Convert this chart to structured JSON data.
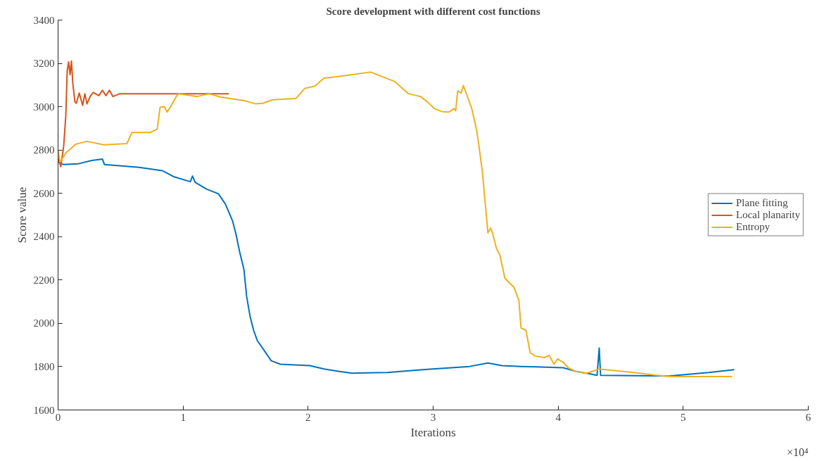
{
  "chart_data": {
    "type": "line",
    "title": "Score development with different cost functions",
    "xlabel": "Iterations",
    "ylabel": "Score value",
    "annotations": [
      "×10⁴"
    ],
    "xlim": [
      0,
      6
    ],
    "xticks": [
      0,
      1,
      2,
      3,
      4,
      5,
      6
    ],
    "ylim": [
      1600,
      3400
    ],
    "yticks": [
      1600,
      1800,
      2000,
      2200,
      2400,
      2600,
      2800,
      3000,
      3200,
      3400
    ],
    "grid": false,
    "legend": "right",
    "line_style": "solid",
    "marker": "none",
    "series": [
      {
        "name": "Plane fitting",
        "color": "#0072bd",
        "x": [
          0,
          0.045,
          0.158,
          0.27,
          0.355,
          0.371,
          0.647,
          0.833,
          0.929,
          1.058,
          1.075,
          1.097,
          1.187,
          1.283,
          1.339,
          1.396,
          1.424,
          1.452,
          1.486,
          1.508,
          1.536,
          1.564,
          1.593,
          1.649,
          1.705,
          1.778,
          2.015,
          2.127,
          2.24,
          2.352,
          2.634,
          2.915,
          3.292,
          3.438,
          3.551,
          3.703,
          4.04,
          4.136,
          4.226,
          4.311,
          4.328,
          4.339,
          4.885,
          5.205,
          5.408
        ],
        "values": [
          2745,
          2733,
          2736,
          2752,
          2758,
          2733,
          2720,
          2705,
          2676,
          2654,
          2680,
          2651,
          2620,
          2598,
          2550,
          2472,
          2409,
          2330,
          2251,
          2125,
          2031,
          1968,
          1921,
          1874,
          1827,
          1811,
          1805,
          1789,
          1779,
          1770,
          1773,
          1786,
          1801,
          1817,
          1805,
          1801,
          1795,
          1779,
          1770,
          1760,
          1886,
          1760,
          1757,
          1773,
          1786
        ]
      },
      {
        "name": "Local planarity",
        "color": "#d95319",
        "x": [
          0,
          0.022,
          0.045,
          0.062,
          0.073,
          0.084,
          0.096,
          0.107,
          0.118,
          0.135,
          0.146,
          0.169,
          0.197,
          0.214,
          0.231,
          0.259,
          0.281,
          0.326,
          0.355,
          0.383,
          0.411,
          0.439,
          0.495,
          0.54,
          1.367
        ],
        "values": [
          2764,
          2723,
          2818,
          2959,
          3164,
          3207,
          3148,
          3211,
          3107,
          3022,
          3016,
          3063,
          3006,
          3060,
          3013,
          3050,
          3066,
          3051,
          3076,
          3051,
          3076,
          3047,
          3060,
          3060,
          3060
        ]
      },
      {
        "name": "Entropy",
        "color": "#edb120",
        "x": [
          0,
          0.017,
          0.062,
          0.141,
          0.231,
          0.366,
          0.551,
          0.591,
          0.737,
          0.793,
          0.816,
          0.85,
          0.872,
          0.906,
          0.945,
          0.962,
          1.114,
          1.21,
          1.3,
          1.491,
          1.581,
          1.638,
          1.716,
          1.902,
          1.975,
          2.054,
          2.127,
          2.24,
          2.499,
          2.69,
          2.802,
          2.898,
          2.954,
          3.011,
          3.067,
          3.123,
          3.168,
          3.18,
          3.196,
          3.224,
          3.241,
          3.269,
          3.309,
          3.348,
          3.365,
          3.393,
          3.416,
          3.438,
          3.461,
          3.478,
          3.506,
          3.534,
          3.573,
          3.607,
          3.647,
          3.686,
          3.703,
          3.742,
          3.776,
          3.815,
          3.889,
          3.928,
          3.967,
          3.995,
          4.04,
          4.08,
          4.136,
          4.226,
          4.294,
          4.322,
          4.603,
          4.789,
          4.902,
          5.391
        ],
        "values": [
          2796,
          2745,
          2786,
          2827,
          2840,
          2824,
          2830,
          2881,
          2881,
          2897,
          2997,
          3000,
          2975,
          3006,
          3047,
          3060,
          3047,
          3060,
          3044,
          3028,
          3013,
          3016,
          3032,
          3038,
          3085,
          3095,
          3132,
          3139,
          3160,
          3117,
          3060,
          3047,
          3022,
          2991,
          2978,
          2975,
          2991,
          2981,
          3073,
          3063,
          3098,
          3054,
          2991,
          2890,
          2824,
          2701,
          2557,
          2418,
          2440,
          2409,
          2346,
          2314,
          2210,
          2188,
          2166,
          2104,
          1978,
          1968,
          1864,
          1849,
          1842,
          1852,
          1811,
          1836,
          1820,
          1795,
          1779,
          1770,
          1782,
          1789,
          1773,
          1760,
          1754,
          1754
        ]
      }
    ]
  }
}
